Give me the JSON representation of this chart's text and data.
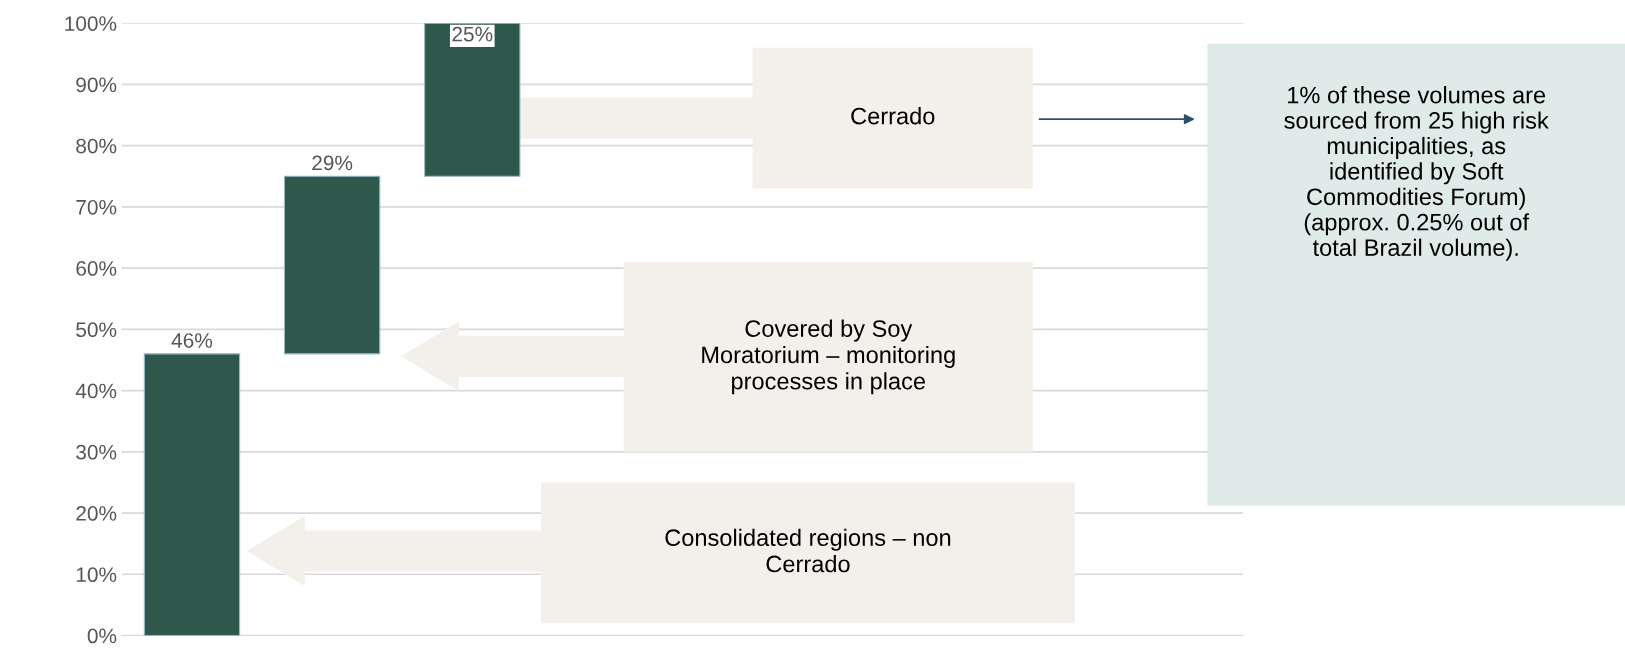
{
  "chart_data": {
    "type": "bar",
    "categories": [
      null,
      null,
      null,
      null,
      null,
      null,
      null,
      null
    ],
    "values": [
      46,
      29,
      25,
      null,
      null,
      null,
      null,
      null
    ],
    "base": [
      0,
      46,
      75,
      null,
      null,
      null,
      null,
      null
    ],
    "value_labels": [
      "46%",
      "29%",
      "25%",
      null,
      null,
      null,
      null,
      null
    ],
    "color": "#2f584d",
    "ylim": [
      0,
      100
    ],
    "yticks": [
      {
        "value": 0,
        "label": "0%"
      },
      {
        "value": 10,
        "label": "10%"
      },
      {
        "value": 20,
        "label": "20%"
      },
      {
        "value": 30,
        "label": "30%"
      },
      {
        "value": 40,
        "label": "40%"
      },
      {
        "value": 50,
        "label": "50%"
      },
      {
        "value": 60,
        "label": "60%"
      },
      {
        "value": 70,
        "label": "70%"
      },
      {
        "value": 80,
        "label": "80%"
      },
      {
        "value": 90,
        "label": "90%"
      },
      {
        "value": 100,
        "label": "100%"
      }
    ],
    "grid": "y",
    "annotations": [
      "Cerrado",
      "Covered by Soy\nMoratorium – monitoring\nprocesses in place",
      "Consolidated regions – non\nCerrado",
      "1% of these volumes are\nsourced from 25 high risk\nmunicipalities, as\nidentified by Soft\nCommodities Forum)\n(approx. 0.25% out of\ntotal Brazil volume)."
    ]
  }
}
